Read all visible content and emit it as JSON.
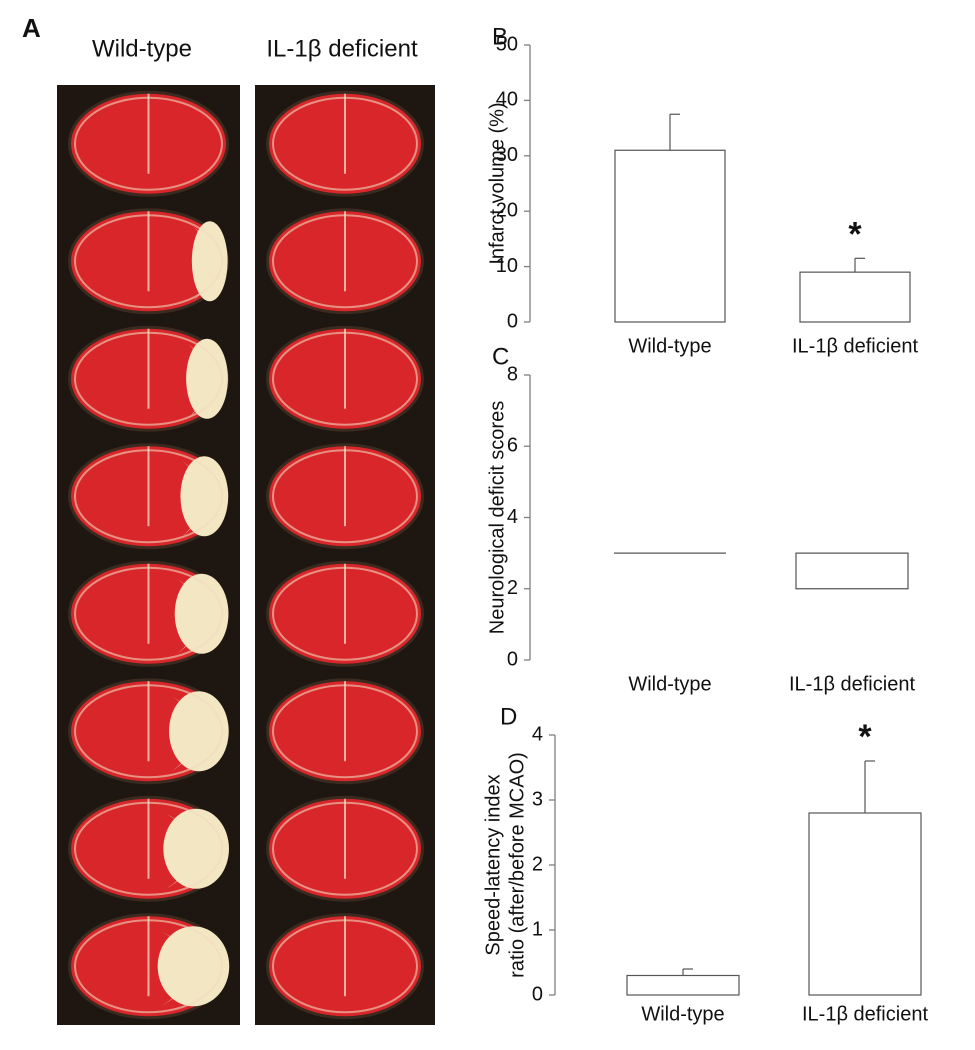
{
  "panel_a": {
    "label": "A",
    "columns": [
      "Wild-type",
      "IL-1β deficient"
    ]
  },
  "chart_data": [
    {
      "type": "bar",
      "panel": "B",
      "ylabel": [
        "Infarct volume (%)"
      ],
      "categories": [
        "Wild-type",
        "IL-1β deficient"
      ],
      "values": [
        31,
        9
      ],
      "errors": [
        6.5,
        2.5
      ],
      "significance": [
        null,
        "*"
      ],
      "ylim": [
        0,
        50
      ],
      "yticks": [
        0,
        10,
        20,
        30,
        40,
        50
      ],
      "color": "#ffffff"
    },
    {
      "type": "box",
      "panel": "C",
      "ylabel": [
        "Neurological deficit scores"
      ],
      "categories": [
        "Wild-type",
        "IL-1β deficient"
      ],
      "q1": [
        3,
        2
      ],
      "q3": [
        3,
        3
      ],
      "ylim": [
        0,
        8
      ],
      "yticks": [
        0,
        2,
        4,
        6,
        8
      ],
      "color": "#ffffff"
    },
    {
      "type": "bar",
      "panel": "D",
      "ylabel": [
        "Speed-latency index",
        "ratio (after/before MCAO)"
      ],
      "categories": [
        "Wild-type",
        "IL-1β deficient"
      ],
      "values": [
        0.3,
        2.8
      ],
      "errors": [
        0.1,
        0.8
      ],
      "significance": [
        null,
        "*"
      ],
      "ylim": [
        0,
        4
      ],
      "yticks": [
        0,
        1,
        2,
        3,
        4
      ],
      "color": "#ffffff"
    }
  ]
}
